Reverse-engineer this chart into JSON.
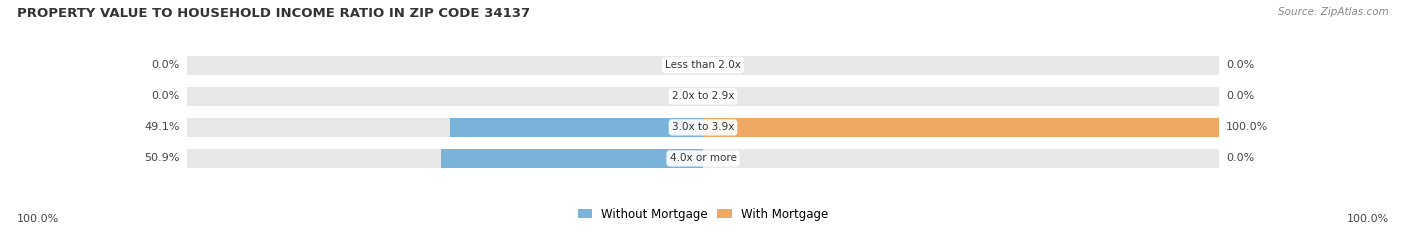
{
  "title": "PROPERTY VALUE TO HOUSEHOLD INCOME RATIO IN ZIP CODE 34137",
  "source": "Source: ZipAtlas.com",
  "categories": [
    "Less than 2.0x",
    "2.0x to 2.9x",
    "3.0x to 3.9x",
    "4.0x or more"
  ],
  "without_mortgage": [
    0.0,
    0.0,
    49.1,
    50.9
  ],
  "with_mortgage": [
    0.0,
    0.0,
    100.0,
    0.0
  ],
  "color_without": "#7ab3d9",
  "color_with": "#f0a965",
  "color_bg_bar": "#e8e8e8",
  "color_bg_fig": "#ffffff",
  "bar_height": 0.62,
  "max_val": 100.0,
  "legend_without": "Without Mortgage",
  "legend_with": "With Mortgage",
  "x_left_label": "100.0%",
  "x_right_label": "100.0%",
  "title_fontsize": 9.5,
  "source_fontsize": 7.5,
  "label_fontsize": 8,
  "cat_fontsize": 7.5
}
